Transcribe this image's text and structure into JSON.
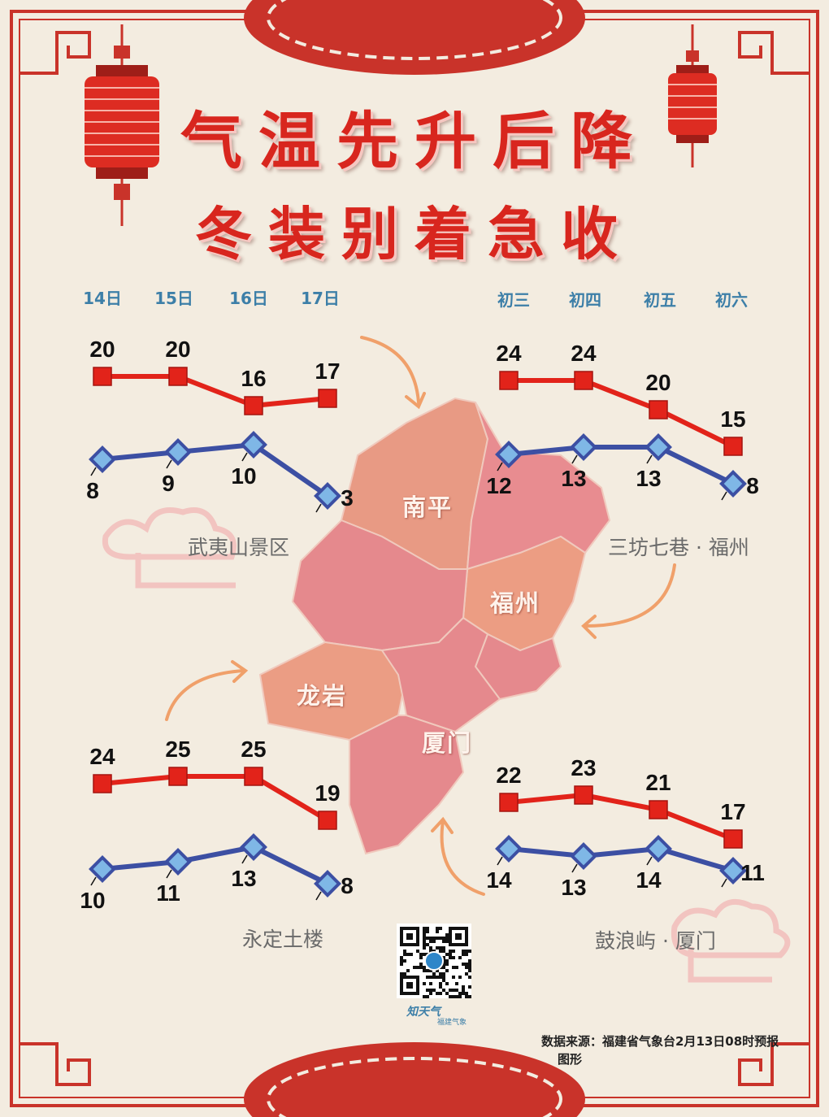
{
  "title_line1": "气温先升后降",
  "title_line2": "冬装别着急收",
  "dates_left": [
    "14日",
    "15日",
    "16日",
    "17日"
  ],
  "dates_right": [
    "初三",
    "初四",
    "初五",
    "初六"
  ],
  "cities": [
    "南平",
    "福州",
    "龙岩",
    "厦门"
  ],
  "source_line1": "数据来源：福建省气象台2月13日08时预报",
  "source_line2": "图形",
  "logo_text": "知天气",
  "logo_sub": "福建气象",
  "colors": {
    "high": "#e2231a",
    "low": "#3c4fa3",
    "title": "#d8261e",
    "date": "#3d7fa8",
    "map_light": "#ea9a86",
    "map_pink": "#e48d91"
  },
  "chart_data": [
    {
      "type": "line",
      "location": "武夷山景区",
      "x": [
        "14日",
        "15日",
        "16日",
        "17日"
      ],
      "series": [
        {
          "name": "",
          "values": [
            20,
            20,
            16,
            17
          ]
        },
        {
          "name": "",
          "values": [
            8,
            9,
            10,
            3
          ]
        }
      ]
    },
    {
      "type": "line",
      "location": "三坊七巷 · 福州",
      "x": [
        "初三",
        "初四",
        "初五",
        "初六"
      ],
      "series": [
        {
          "name": "",
          "values": [
            24,
            24,
            20,
            15
          ]
        },
        {
          "name": "",
          "values": [
            12,
            13,
            13,
            8
          ]
        }
      ]
    },
    {
      "type": "line",
      "location": "永定土楼",
      "x": [
        "14日",
        "15日",
        "16日",
        "17日"
      ],
      "series": [
        {
          "name": "",
          "values": [
            24,
            25,
            25,
            19
          ]
        },
        {
          "name": "",
          "values": [
            10,
            11,
            13,
            8
          ]
        }
      ]
    },
    {
      "type": "line",
      "location": "鼓浪屿 · 厦门",
      "x": [
        "初三",
        "初四",
        "初五",
        "初六"
      ],
      "series": [
        {
          "name": "",
          "values": [
            22,
            23,
            21,
            17
          ]
        },
        {
          "name": "",
          "values": [
            14,
            13,
            14,
            11
          ]
        }
      ]
    }
  ]
}
